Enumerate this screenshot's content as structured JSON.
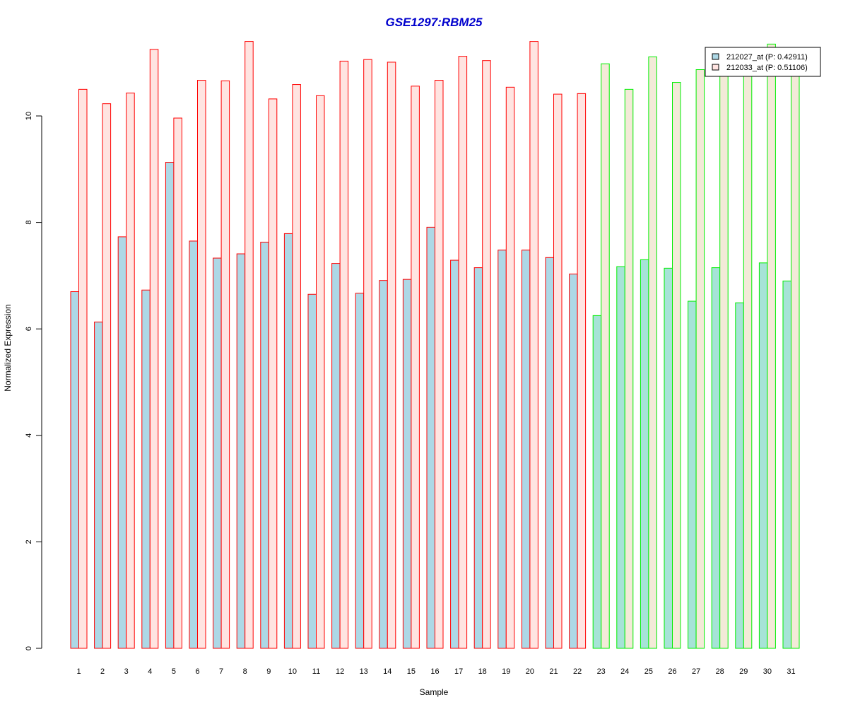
{
  "chart_data": {
    "type": "bar",
    "title": "GSE1297:RBM25",
    "xlabel": "Sample",
    "ylabel": "Normalized Expression",
    "ylim": [
      0,
      11.5
    ],
    "yticks": [
      "0",
      "2",
      "4",
      "6",
      "8",
      "10"
    ],
    "grid": false,
    "legend_position": "top-right",
    "categories": [
      "1",
      "2",
      "3",
      "4",
      "5",
      "6",
      "7",
      "8",
      "9",
      "10",
      "11",
      "12",
      "13",
      "14",
      "15",
      "16",
      "17",
      "18",
      "19",
      "20",
      "21",
      "22",
      "23",
      "24",
      "25",
      "26",
      "27",
      "28",
      "29",
      "30",
      "31"
    ],
    "group_of_sample": [
      1,
      1,
      1,
      1,
      1,
      1,
      1,
      1,
      1,
      1,
      1,
      1,
      1,
      1,
      1,
      1,
      1,
      1,
      1,
      1,
      1,
      1,
      2,
      2,
      2,
      2,
      2,
      2,
      2,
      2,
      2
    ],
    "series": [
      {
        "name": "212027_at (P: 0.42911)",
        "values": [
          6.7,
          6.13,
          7.73,
          6.73,
          9.13,
          7.65,
          7.33,
          7.41,
          7.63,
          7.79,
          6.65,
          7.23,
          6.67,
          6.91,
          6.93,
          7.91,
          7.29,
          7.15,
          7.48,
          7.48,
          7.34,
          7.03,
          6.25,
          7.17,
          7.3,
          7.14,
          6.52,
          7.15,
          6.49,
          7.24,
          6.9
        ]
      },
      {
        "name": "212033_at (P: 0.51106)",
        "values": [
          10.5,
          10.23,
          10.43,
          11.25,
          9.96,
          10.67,
          10.66,
          11.4,
          10.32,
          10.59,
          10.38,
          11.03,
          11.06,
          11.01,
          10.56,
          10.67,
          11.12,
          11.04,
          10.54,
          11.4,
          10.41,
          10.42,
          10.98,
          10.5,
          11.11,
          10.63,
          10.87,
          10.85,
          10.85,
          11.35,
          10.85
        ]
      }
    ],
    "colors": {
      "series_fill": [
        "#add8e6",
        "#ffe4e1"
      ],
      "group_border": [
        "#ff0000",
        "#00ee00"
      ],
      "group_fill": [
        "#add8e6",
        "#ffe4e1"
      ],
      "group2_fill": [
        "#a6e3d7",
        "#f3ead8"
      ],
      "title_color": "#0000cd",
      "legend_border": "#000000"
    }
  }
}
